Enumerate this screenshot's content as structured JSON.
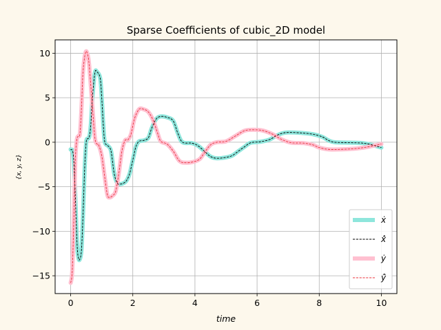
{
  "chart_data": {
    "type": "line",
    "title": "Sparse Coefficients of cubic_2D model",
    "xlabel": "time",
    "ylabel": "{x, y, z}",
    "xlim": [
      -0.5,
      10.5
    ],
    "ylim": [
      -17,
      11.5
    ],
    "xticks": [
      0,
      2,
      4,
      6,
      8,
      10
    ],
    "yticks": [
      10,
      5,
      0,
      -5,
      -10,
      -15
    ],
    "grid": true,
    "legend_position": "bottom-right",
    "colors": {
      "x_true": "#8ee6dc",
      "x_hat": "#000000",
      "y_true": "#ffc0d0",
      "y_hat": "#e8303a"
    },
    "legend": [
      {
        "key": "x_true",
        "label": "ẋ",
        "style": "thick"
      },
      {
        "key": "x_hat",
        "label": "x̂̇",
        "style": "dashed"
      },
      {
        "key": "y_true",
        "label": "ẏ",
        "style": "thick"
      },
      {
        "key": "y_hat",
        "label": "ŷ̇",
        "style": "dashed"
      }
    ],
    "series": {
      "x": [
        [
          0,
          -0.8
        ],
        [
          0.1,
          -2
        ],
        [
          0.2,
          -11
        ],
        [
          0.25,
          -13
        ],
        [
          0.3,
          -13.1
        ],
        [
          0.35,
          -12
        ],
        [
          0.4,
          -8
        ],
        [
          0.45,
          -3
        ],
        [
          0.5,
          0
        ],
        [
          0.55,
          0.4
        ],
        [
          0.6,
          0.6
        ],
        [
          0.65,
          2
        ],
        [
          0.7,
          5
        ],
        [
          0.78,
          7.8
        ],
        [
          0.85,
          7.9
        ],
        [
          0.95,
          7.2
        ],
        [
          1.0,
          5
        ],
        [
          1.05,
          2
        ],
        [
          1.1,
          0
        ],
        [
          1.2,
          -0.4
        ],
        [
          1.3,
          -1
        ],
        [
          1.4,
          -3.5
        ],
        [
          1.5,
          -4.6
        ],
        [
          1.6,
          -4.7
        ],
        [
          1.7,
          -4.6
        ],
        [
          1.8,
          -4.3
        ],
        [
          1.9,
          -3.5
        ],
        [
          2.0,
          -2
        ],
        [
          2.1,
          -0.5
        ],
        [
          2.2,
          0.1
        ],
        [
          2.35,
          0.2
        ],
        [
          2.5,
          0.5
        ],
        [
          2.6,
          1.5
        ],
        [
          2.75,
          2.6
        ],
        [
          2.9,
          2.9
        ],
        [
          3.1,
          2.8
        ],
        [
          3.3,
          2.4
        ],
        [
          3.45,
          1
        ],
        [
          3.6,
          0
        ],
        [
          3.9,
          -0.1
        ],
        [
          4.1,
          -0.4
        ],
        [
          4.3,
          -1
        ],
        [
          4.5,
          -1.6
        ],
        [
          4.7,
          -1.8
        ],
        [
          5.0,
          -1.7
        ],
        [
          5.2,
          -1.5
        ],
        [
          5.4,
          -1
        ],
        [
          5.6,
          -0.5
        ],
        [
          5.8,
          -0.05
        ],
        [
          6.1,
          0.05
        ],
        [
          6.4,
          0.3
        ],
        [
          6.6,
          0.7
        ],
        [
          6.8,
          1
        ],
        [
          7.0,
          1.1
        ],
        [
          7.4,
          1.05
        ],
        [
          7.8,
          0.9
        ],
        [
          8.1,
          0.6
        ],
        [
          8.3,
          0.2
        ],
        [
          8.5,
          0
        ],
        [
          9.0,
          -0.05
        ],
        [
          9.4,
          -0.1
        ],
        [
          9.7,
          -0.3
        ],
        [
          10.0,
          -0.6
        ]
      ],
      "y": [
        [
          0,
          -15.8
        ],
        [
          0.05,
          -14.5
        ],
        [
          0.1,
          -9
        ],
        [
          0.15,
          -2
        ],
        [
          0.2,
          0.3
        ],
        [
          0.25,
          0.7
        ],
        [
          0.3,
          1
        ],
        [
          0.35,
          4
        ],
        [
          0.4,
          8
        ],
        [
          0.48,
          10.1
        ],
        [
          0.55,
          9.8
        ],
        [
          0.6,
          8.5
        ],
        [
          0.7,
          4
        ],
        [
          0.78,
          0.5
        ],
        [
          0.85,
          -0.2
        ],
        [
          0.9,
          -0.3
        ],
        [
          1.0,
          -1.5
        ],
        [
          1.1,
          -4
        ],
        [
          1.18,
          -5.9
        ],
        [
          1.25,
          -6.2
        ],
        [
          1.35,
          -6
        ],
        [
          1.45,
          -5.5
        ],
        [
          1.55,
          -3.5
        ],
        [
          1.65,
          -1
        ],
        [
          1.75,
          0.2
        ],
        [
          1.85,
          0.3
        ],
        [
          1.95,
          1
        ],
        [
          2.05,
          2.6
        ],
        [
          2.2,
          3.7
        ],
        [
          2.35,
          3.7
        ],
        [
          2.5,
          3.4
        ],
        [
          2.65,
          2.5
        ],
        [
          2.8,
          1
        ],
        [
          2.9,
          0.1
        ],
        [
          3.1,
          -0.2
        ],
        [
          3.3,
          -1
        ],
        [
          3.5,
          -2.1
        ],
        [
          3.7,
          -2.3
        ],
        [
          3.95,
          -2.2
        ],
        [
          4.15,
          -1.9
        ],
        [
          4.3,
          -1.2
        ],
        [
          4.5,
          -0.3
        ],
        [
          4.7,
          0
        ],
        [
          5.0,
          0.1
        ],
        [
          5.3,
          0.7
        ],
        [
          5.6,
          1.3
        ],
        [
          5.9,
          1.4
        ],
        [
          6.2,
          1.3
        ],
        [
          6.5,
          0.9
        ],
        [
          6.8,
          0.3
        ],
        [
          7.1,
          -0.05
        ],
        [
          7.5,
          -0.1
        ],
        [
          7.8,
          -0.3
        ],
        [
          8.0,
          -0.6
        ],
        [
          8.3,
          -0.8
        ],
        [
          8.7,
          -0.8
        ],
        [
          9.2,
          -0.7
        ],
        [
          9.6,
          -0.5
        ],
        [
          10.0,
          -0.2
        ]
      ]
    }
  }
}
